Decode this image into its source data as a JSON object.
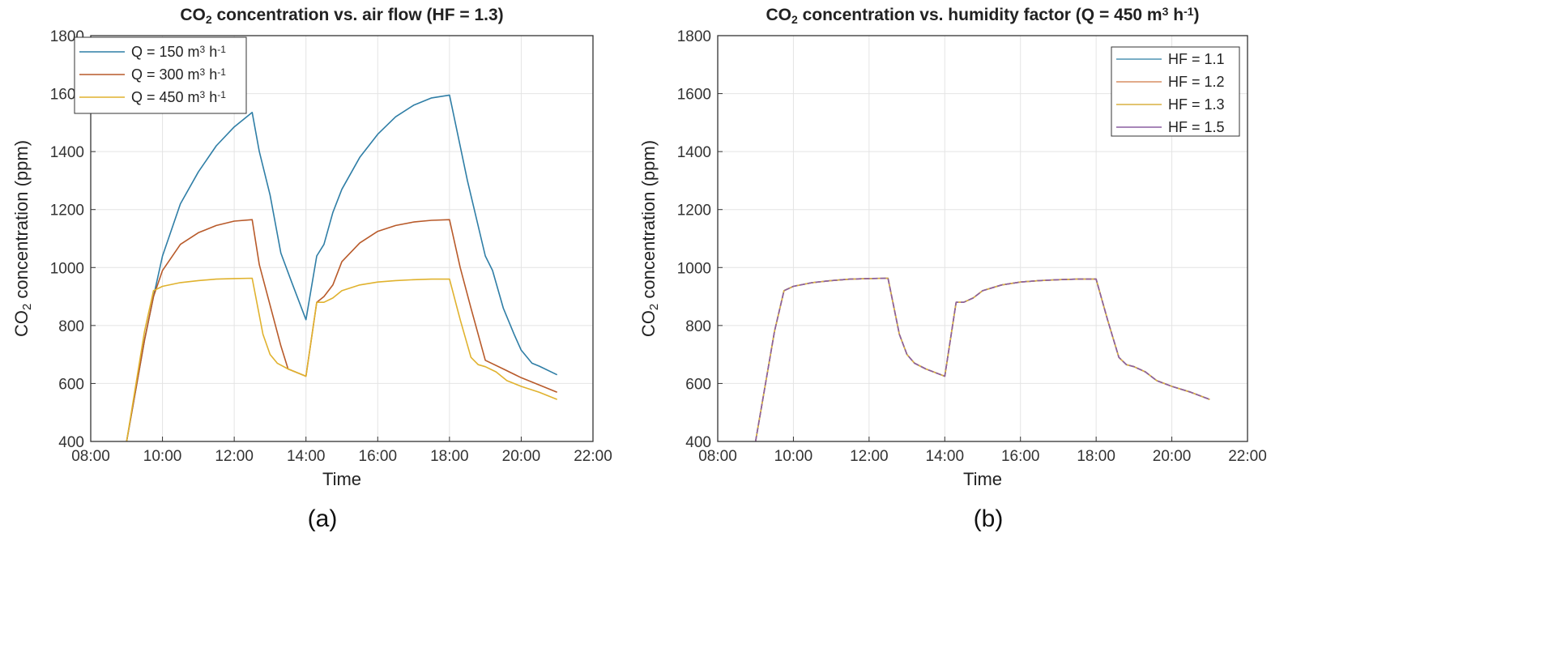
{
  "chart_data": [
    {
      "id": "a",
      "type": "line",
      "title": {
        "pre": "CO",
        "sub": "2",
        "post": " concentration vs. air flow (HF = 1.3)",
        "sup": "",
        "tail": ""
      },
      "xlabel": "Time",
      "ylabel": {
        "pre": "CO",
        "sub": "2",
        "post": " concentration (ppm)"
      },
      "panel_label": "(a)",
      "xlim": [
        8,
        22
      ],
      "ylim": [
        400,
        1800
      ],
      "xticks": [
        "08:00",
        "10:00",
        "12:00",
        "14:00",
        "16:00",
        "18:00",
        "20:00",
        "22:00"
      ],
      "yticks": [
        "400",
        "600",
        "800",
        "1000",
        "1200",
        "1400",
        "1600",
        "1800"
      ],
      "grid": true,
      "legend": "top-left",
      "series": [
        {
          "name": {
            "pre": "Q = 150 m",
            "sup1": "3",
            "mid": " h",
            "sup2": "-1"
          },
          "color": "#2f7ea6",
          "x": [
            9.0,
            9.5,
            9.75,
            10.0,
            10.5,
            11.0,
            11.5,
            12.0,
            12.5,
            12.7,
            13.0,
            13.3,
            13.6,
            14.0,
            14.3,
            14.5,
            14.75,
            15.0,
            15.5,
            16.0,
            16.5,
            17.0,
            17.5,
            18.0,
            18.5,
            19.0,
            19.2,
            19.5,
            19.8,
            20.0,
            20.3,
            20.5,
            21.0
          ],
          "y": [
            400,
            750,
            900,
            1040,
            1220,
            1330,
            1420,
            1485,
            1535,
            1400,
            1250,
            1050,
            950,
            820,
            1040,
            1080,
            1190,
            1270,
            1380,
            1460,
            1520,
            1560,
            1585,
            1595,
            1300,
            1040,
            990,
            860,
            770,
            715,
            670,
            660,
            630
          ]
        },
        {
          "name": {
            "pre": "Q = 300 m",
            "sup1": "3",
            "mid": " h",
            "sup2": "-1"
          },
          "color": "#b85a2a",
          "x": [
            9.0,
            9.5,
            9.75,
            10.0,
            10.5,
            11.0,
            11.5,
            12.0,
            12.5,
            12.7,
            13.0,
            13.3,
            13.5,
            14.0,
            14.3,
            14.5,
            14.75,
            15.0,
            15.5,
            16.0,
            16.5,
            17.0,
            17.5,
            18.0,
            18.3,
            18.6,
            19.0,
            19.5,
            20.0,
            20.5,
            21.0
          ],
          "y": [
            400,
            750,
            900,
            990,
            1080,
            1120,
            1145,
            1160,
            1165,
            1010,
            870,
            730,
            650,
            625,
            880,
            900,
            940,
            1020,
            1085,
            1125,
            1145,
            1157,
            1163,
            1165,
            1000,
            860,
            680,
            650,
            620,
            595,
            570
          ]
        },
        {
          "name": {
            "pre": "Q = 450 m",
            "sup1": "3",
            "mid": " h",
            "sup2": "-1"
          },
          "color": "#e0b22e",
          "x": [
            9.0,
            9.5,
            9.75,
            10.0,
            10.5,
            11.0,
            11.5,
            12.0,
            12.5,
            12.8,
            13.0,
            13.2,
            13.5,
            14.0,
            14.3,
            14.5,
            14.75,
            15.0,
            15.5,
            16.0,
            16.5,
            17.0,
            17.5,
            18.0,
            18.3,
            18.6,
            18.8,
            19.0,
            19.3,
            19.6,
            20.0,
            20.5,
            21.0
          ],
          "y": [
            400,
            780,
            920,
            935,
            948,
            955,
            960,
            962,
            963,
            770,
            700,
            670,
            650,
            625,
            880,
            880,
            895,
            920,
            940,
            950,
            955,
            958,
            960,
            960,
            820,
            690,
            665,
            658,
            640,
            610,
            590,
            570,
            545
          ]
        }
      ]
    },
    {
      "id": "b",
      "type": "line",
      "title": {
        "pre": "CO",
        "sub": "2",
        "post": " concentration vs. humidity factor (Q = 450 m",
        "sup": "3",
        "tail": " h",
        "sup2": "-1",
        "end": ")"
      },
      "xlabel": "Time",
      "ylabel": {
        "pre": "CO",
        "sub": "2",
        "post": " concentration (ppm)"
      },
      "panel_label": "(b)",
      "xlim": [
        8,
        22
      ],
      "ylim": [
        400,
        1800
      ],
      "xticks": [
        "08:00",
        "10:00",
        "12:00",
        "14:00",
        "16:00",
        "18:00",
        "20:00",
        "22:00"
      ],
      "yticks": [
        "400",
        "600",
        "800",
        "1000",
        "1200",
        "1400",
        "1600",
        "1800"
      ],
      "grid": true,
      "legend": "top-right",
      "series_x": [
        9.0,
        9.5,
        9.75,
        10.0,
        10.5,
        11.0,
        11.5,
        12.0,
        12.5,
        12.8,
        13.0,
        13.2,
        13.5,
        14.0,
        14.3,
        14.5,
        14.75,
        15.0,
        15.5,
        16.0,
        16.5,
        17.0,
        17.5,
        18.0,
        18.3,
        18.6,
        18.8,
        19.0,
        19.3,
        19.6,
        20.0,
        20.5,
        21.0
      ],
      "series_y": [
        400,
        780,
        920,
        935,
        948,
        955,
        960,
        962,
        963,
        770,
        700,
        670,
        650,
        625,
        880,
        880,
        895,
        920,
        940,
        950,
        955,
        958,
        960,
        960,
        820,
        690,
        665,
        658,
        640,
        610,
        590,
        570,
        545
      ],
      "series": [
        {
          "name": "HF = 1.1",
          "color": "#4f93b3"
        },
        {
          "name": "HF = 1.2",
          "color": "#d98f63"
        },
        {
          "name": "HF = 1.3",
          "color": "#d9b040"
        },
        {
          "name": "HF = 1.5",
          "color": "#8b5fa0"
        }
      ]
    }
  ]
}
